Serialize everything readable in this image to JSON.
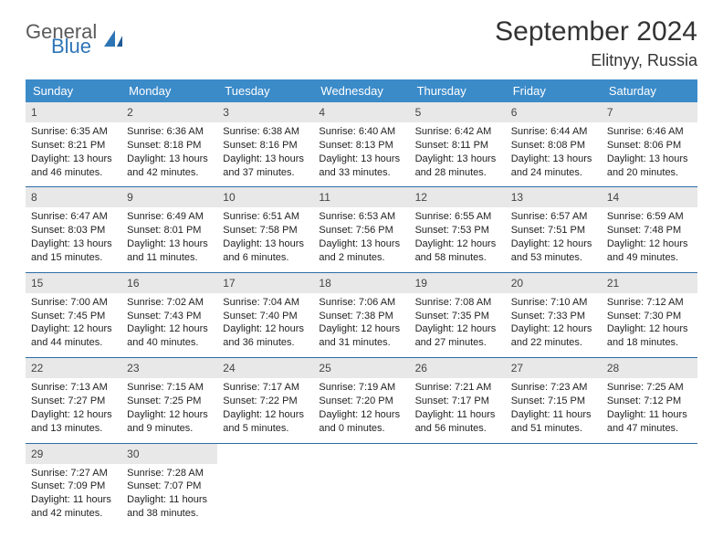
{
  "logo": {
    "line1": "General",
    "line2": "Blue"
  },
  "title": "September 2024",
  "location": "Elitnyy, Russia",
  "colors": {
    "header_bg": "#3b8bc9",
    "header_text": "#ffffff",
    "daynum_bg": "#e8e8e8",
    "week_border": "#2e6ca8",
    "logo_gray": "#5a5a5a",
    "logo_blue": "#2e75b6",
    "body_text": "#222222"
  },
  "day_headers": [
    "Sunday",
    "Monday",
    "Tuesday",
    "Wednesday",
    "Thursday",
    "Friday",
    "Saturday"
  ],
  "weeks": [
    [
      {
        "n": "1",
        "sr": "6:35 AM",
        "ss": "8:21 PM",
        "dl": "13 hours and 46 minutes."
      },
      {
        "n": "2",
        "sr": "6:36 AM",
        "ss": "8:18 PM",
        "dl": "13 hours and 42 minutes."
      },
      {
        "n": "3",
        "sr": "6:38 AM",
        "ss": "8:16 PM",
        "dl": "13 hours and 37 minutes."
      },
      {
        "n": "4",
        "sr": "6:40 AM",
        "ss": "8:13 PM",
        "dl": "13 hours and 33 minutes."
      },
      {
        "n": "5",
        "sr": "6:42 AM",
        "ss": "8:11 PM",
        "dl": "13 hours and 28 minutes."
      },
      {
        "n": "6",
        "sr": "6:44 AM",
        "ss": "8:08 PM",
        "dl": "13 hours and 24 minutes."
      },
      {
        "n": "7",
        "sr": "6:46 AM",
        "ss": "8:06 PM",
        "dl": "13 hours and 20 minutes."
      }
    ],
    [
      {
        "n": "8",
        "sr": "6:47 AM",
        "ss": "8:03 PM",
        "dl": "13 hours and 15 minutes."
      },
      {
        "n": "9",
        "sr": "6:49 AM",
        "ss": "8:01 PM",
        "dl": "13 hours and 11 minutes."
      },
      {
        "n": "10",
        "sr": "6:51 AM",
        "ss": "7:58 PM",
        "dl": "13 hours and 6 minutes."
      },
      {
        "n": "11",
        "sr": "6:53 AM",
        "ss": "7:56 PM",
        "dl": "13 hours and 2 minutes."
      },
      {
        "n": "12",
        "sr": "6:55 AM",
        "ss": "7:53 PM",
        "dl": "12 hours and 58 minutes."
      },
      {
        "n": "13",
        "sr": "6:57 AM",
        "ss": "7:51 PM",
        "dl": "12 hours and 53 minutes."
      },
      {
        "n": "14",
        "sr": "6:59 AM",
        "ss": "7:48 PM",
        "dl": "12 hours and 49 minutes."
      }
    ],
    [
      {
        "n": "15",
        "sr": "7:00 AM",
        "ss": "7:45 PM",
        "dl": "12 hours and 44 minutes."
      },
      {
        "n": "16",
        "sr": "7:02 AM",
        "ss": "7:43 PM",
        "dl": "12 hours and 40 minutes."
      },
      {
        "n": "17",
        "sr": "7:04 AM",
        "ss": "7:40 PM",
        "dl": "12 hours and 36 minutes."
      },
      {
        "n": "18",
        "sr": "7:06 AM",
        "ss": "7:38 PM",
        "dl": "12 hours and 31 minutes."
      },
      {
        "n": "19",
        "sr": "7:08 AM",
        "ss": "7:35 PM",
        "dl": "12 hours and 27 minutes."
      },
      {
        "n": "20",
        "sr": "7:10 AM",
        "ss": "7:33 PM",
        "dl": "12 hours and 22 minutes."
      },
      {
        "n": "21",
        "sr": "7:12 AM",
        "ss": "7:30 PM",
        "dl": "12 hours and 18 minutes."
      }
    ],
    [
      {
        "n": "22",
        "sr": "7:13 AM",
        "ss": "7:27 PM",
        "dl": "12 hours and 13 minutes."
      },
      {
        "n": "23",
        "sr": "7:15 AM",
        "ss": "7:25 PM",
        "dl": "12 hours and 9 minutes."
      },
      {
        "n": "24",
        "sr": "7:17 AM",
        "ss": "7:22 PM",
        "dl": "12 hours and 5 minutes."
      },
      {
        "n": "25",
        "sr": "7:19 AM",
        "ss": "7:20 PM",
        "dl": "12 hours and 0 minutes."
      },
      {
        "n": "26",
        "sr": "7:21 AM",
        "ss": "7:17 PM",
        "dl": "11 hours and 56 minutes."
      },
      {
        "n": "27",
        "sr": "7:23 AM",
        "ss": "7:15 PM",
        "dl": "11 hours and 51 minutes."
      },
      {
        "n": "28",
        "sr": "7:25 AM",
        "ss": "7:12 PM",
        "dl": "11 hours and 47 minutes."
      }
    ],
    [
      {
        "n": "29",
        "sr": "7:27 AM",
        "ss": "7:09 PM",
        "dl": "11 hours and 42 minutes."
      },
      {
        "n": "30",
        "sr": "7:28 AM",
        "ss": "7:07 PM",
        "dl": "11 hours and 38 minutes."
      },
      null,
      null,
      null,
      null,
      null
    ]
  ],
  "labels": {
    "sunrise": "Sunrise:",
    "sunset": "Sunset:",
    "daylight": "Daylight:"
  }
}
